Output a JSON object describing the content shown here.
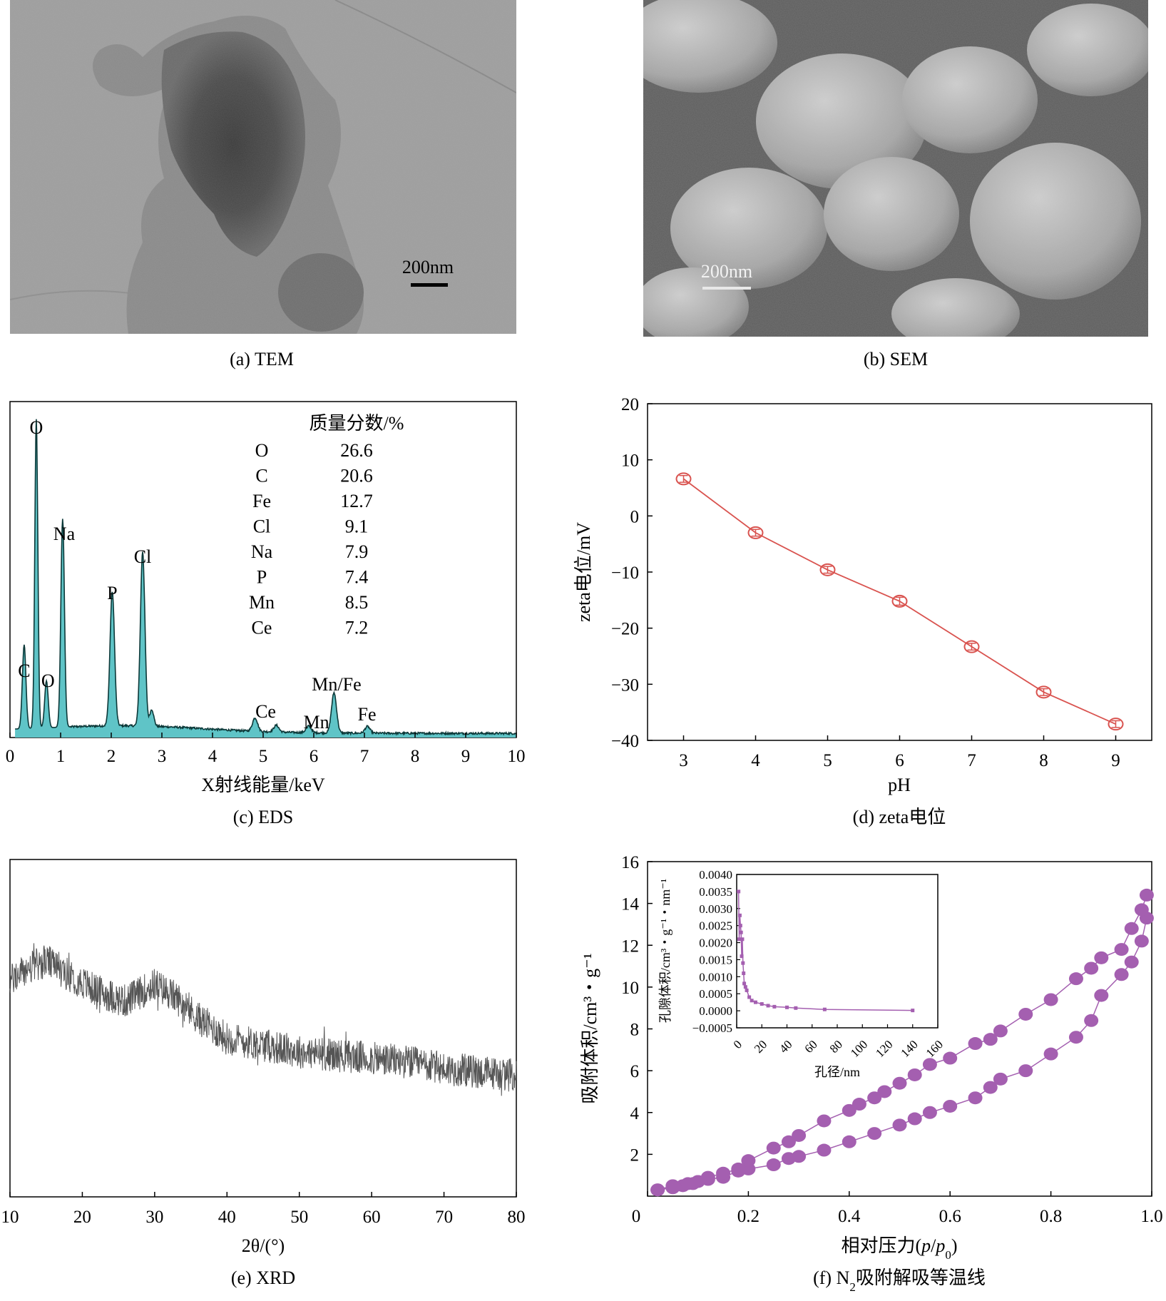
{
  "panels": {
    "tem": {
      "caption": "(a) TEM",
      "scale_label": "200nm"
    },
    "sem": {
      "caption": "(b) SEM",
      "scale_label": "200nm"
    }
  },
  "chart_data": [
    {
      "id": "eds",
      "type": "area",
      "caption": "(c) EDS",
      "xlabel": "X射线能量/keV",
      "ylabel": "",
      "xlim": [
        0,
        10
      ],
      "xticks": [
        0,
        1,
        2,
        3,
        4,
        5,
        6,
        7,
        8,
        9,
        10
      ],
      "fill_color": "#5fc4c7",
      "line_color": "#0b3838",
      "peaks": [
        {
          "x": 0.28,
          "h": 0.25,
          "w": 0.035
        },
        {
          "x": 0.52,
          "h": 0.92,
          "w": 0.03
        },
        {
          "x": 0.72,
          "h": 0.14,
          "w": 0.035
        },
        {
          "x": 1.04,
          "h": 0.62,
          "w": 0.035
        },
        {
          "x": 2.02,
          "h": 0.4,
          "w": 0.045
        },
        {
          "x": 2.62,
          "h": 0.52,
          "w": 0.045
        },
        {
          "x": 2.8,
          "h": 0.05,
          "w": 0.04
        },
        {
          "x": 4.84,
          "h": 0.04,
          "w": 0.05
        },
        {
          "x": 5.26,
          "h": 0.02,
          "w": 0.05
        },
        {
          "x": 5.9,
          "h": 0.02,
          "w": 0.05
        },
        {
          "x": 6.4,
          "h": 0.12,
          "w": 0.05
        },
        {
          "x": 7.06,
          "h": 0.02,
          "w": 0.05
        }
      ],
      "peak_labels": [
        {
          "text": "O",
          "x": 0.52
        },
        {
          "text": "C",
          "x": 0.28
        },
        {
          "text": "O",
          "x": 0.75
        },
        {
          "text": "Na",
          "x": 1.07
        },
        {
          "text": "P",
          "x": 2.02
        },
        {
          "text": "Cl",
          "x": 2.62
        },
        {
          "text": "Ce",
          "x": 5.05
        },
        {
          "text": "Mn",
          "x": 6.05
        },
        {
          "text": "Mn/Fe",
          "x": 6.45
        },
        {
          "text": "Fe",
          "x": 7.05
        }
      ],
      "table": {
        "header": "质量分数/%",
        "rows": [
          {
            "element": "O",
            "value": "26.6"
          },
          {
            "element": "C",
            "value": "20.6"
          },
          {
            "element": "Fe",
            "value": "12.7"
          },
          {
            "element": "Cl",
            "value": "9.1"
          },
          {
            "element": "Na",
            "value": "7.9"
          },
          {
            "element": "P",
            "value": "7.4"
          },
          {
            "element": "Mn",
            "value": "8.5"
          },
          {
            "element": "Ce",
            "value": "7.2"
          }
        ]
      }
    },
    {
      "id": "zeta",
      "type": "line",
      "caption": "(d) zeta电位",
      "xlabel": "pH",
      "ylabel": "zeta电位/mV",
      "xlim": [
        2.5,
        9.5
      ],
      "ylim": [
        -40,
        20
      ],
      "xticks": [
        3,
        4,
        5,
        6,
        7,
        8,
        9
      ],
      "yticks": [
        20,
        10,
        0,
        -10,
        -20,
        -30,
        -40
      ],
      "ytick_labels": [
        "20",
        "10",
        "0",
        "−10",
        "−20",
        "−30",
        "−40"
      ],
      "color": "#d9534f",
      "x": [
        3,
        4,
        5,
        6,
        7,
        8,
        9
      ],
      "y": [
        6.6,
        -3.0,
        -9.6,
        -15.2,
        -23.3,
        -31.4,
        -37.1
      ],
      "error": [
        0.6,
        0.6,
        0.6,
        0.7,
        0.6,
        0.6,
        0.6
      ]
    },
    {
      "id": "xrd",
      "type": "line",
      "caption": "(e) XRD",
      "xlabel": "2θ/(°)",
      "xlim": [
        10,
        80
      ],
      "xticks": [
        10,
        20,
        30,
        40,
        50,
        60,
        70,
        80
      ],
      "color": "#555555",
      "profile_x": [
        10,
        12,
        15,
        18,
        22,
        26,
        30,
        33,
        36,
        40,
        45,
        50,
        55,
        60,
        65,
        70,
        75,
        80
      ],
      "profile_y": [
        0.64,
        0.67,
        0.7,
        0.66,
        0.61,
        0.58,
        0.63,
        0.59,
        0.53,
        0.47,
        0.45,
        0.43,
        0.42,
        0.41,
        0.4,
        0.38,
        0.37,
        0.36
      ],
      "noise": 0.05
    },
    {
      "id": "bet",
      "type": "scatter",
      "caption_prefix": "(f) N",
      "caption_sub": "2",
      "caption_suffix": "吸附解吸等温线",
      "xlabel_prefix": "相对压力(",
      "xlabel_p": "p",
      "xlabel_slash": "/",
      "xlabel_p0": "p",
      "xlabel_sub": "0",
      "xlabel_suffix": ")",
      "ylabel": "吸附体积/cm³・g⁻¹",
      "xlim": [
        0,
        1.0
      ],
      "ylim": [
        0,
        16
      ],
      "xticks": [
        0,
        0.2,
        0.4,
        0.6,
        0.8,
        1.0
      ],
      "xtick_labels": [
        "0",
        "0.2",
        "0.4",
        "0.6",
        "0.8",
        "1.0"
      ],
      "yticks": [
        2,
        4,
        6,
        8,
        10,
        12,
        14,
        16
      ],
      "color": "#a45fb0",
      "series": [
        {
          "name": "adsorption",
          "x": [
            0.02,
            0.05,
            0.07,
            0.09,
            0.1,
            0.12,
            0.15,
            0.18,
            0.2,
            0.25,
            0.28,
            0.3,
            0.35,
            0.4,
            0.45,
            0.5,
            0.53,
            0.56,
            0.6,
            0.65,
            0.68,
            0.7,
            0.75,
            0.8,
            0.85,
            0.88,
            0.9,
            0.94,
            0.96,
            0.98,
            0.99
          ],
          "y": [
            0.3,
            0.4,
            0.5,
            0.6,
            0.7,
            0.8,
            0.9,
            1.2,
            1.3,
            1.5,
            1.8,
            1.9,
            2.2,
            2.6,
            3.0,
            3.4,
            3.7,
            4.0,
            4.3,
            4.7,
            5.2,
            5.6,
            6.0,
            6.8,
            7.6,
            8.4,
            9.6,
            10.6,
            11.2,
            12.2,
            13.3
          ]
        },
        {
          "name": "desorption",
          "x": [
            0.99,
            0.98,
            0.96,
            0.94,
            0.9,
            0.88,
            0.85,
            0.8,
            0.75,
            0.7,
            0.68,
            0.65,
            0.6,
            0.56,
            0.53,
            0.5,
            0.47,
            0.45,
            0.42,
            0.4,
            0.35,
            0.3,
            0.28,
            0.25,
            0.2,
            0.18,
            0.15,
            0.12,
            0.1,
            0.08,
            0.05,
            0.02
          ],
          "y": [
            14.4,
            13.7,
            12.8,
            11.8,
            11.4,
            10.9,
            10.4,
            9.4,
            8.7,
            7.9,
            7.5,
            7.3,
            6.6,
            6.3,
            5.8,
            5.4,
            5.0,
            4.7,
            4.4,
            4.1,
            3.6,
            2.9,
            2.6,
            2.3,
            1.7,
            1.3,
            1.1,
            0.9,
            0.7,
            0.6,
            0.5,
            0.3
          ]
        }
      ],
      "inset": {
        "xlabel": "孔径/nm",
        "ylabel": "孔隙体积/cm³・g⁻¹・nm⁻¹",
        "xlim": [
          0,
          160
        ],
        "ylim": [
          -0.0005,
          0.004
        ],
        "xticks": [
          0,
          20,
          40,
          60,
          80,
          100,
          120,
          140,
          160
        ],
        "yticks": [
          0.004,
          0.0035,
          0.003,
          0.0025,
          0.002,
          0.0015,
          0.001,
          0.0005,
          0,
          -0.0005
        ],
        "ytick_labels": [
          "0.0040",
          "0.0035",
          "0.0030",
          "0.0025",
          "0.0020",
          "0.0015",
          "0.0010",
          "0.0005",
          "0.0000",
          "−0.0005"
        ],
        "x": [
          1.5,
          2,
          2.5,
          3,
          3.5,
          4,
          4.5,
          5,
          5.5,
          6,
          7,
          8,
          10,
          12,
          15,
          20,
          25,
          30,
          40,
          47,
          70,
          140
        ],
        "y": [
          0.0035,
          0.0021,
          0.0028,
          0.0025,
          0.0023,
          0.0016,
          0.0021,
          0.0014,
          0.0011,
          0.0008,
          0.0007,
          0.0006,
          0.0004,
          0.0003,
          0.00025,
          0.0002,
          0.00015,
          0.00012,
          0.0001,
          8e-05,
          4e-05,
          1e-05
        ]
      }
    }
  ]
}
